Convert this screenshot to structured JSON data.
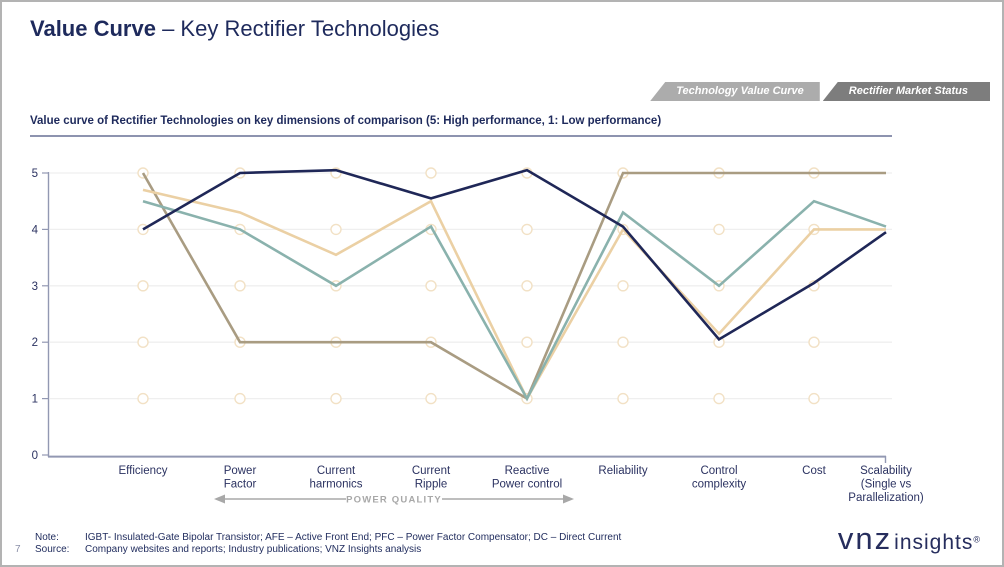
{
  "header": {
    "title_bold": "Value Curve",
    "title_rest": "– Key Rectifier Technologies"
  },
  "tabs": [
    {
      "label": "Technology Value Curve"
    },
    {
      "label": "Rectifier Market Status"
    }
  ],
  "subtitle": "Value curve of Rectifier Technologies on key dimensions of comparison (5: High performance, 1: Low performance)",
  "chart_data": {
    "type": "line",
    "title": "Value curve of Rectifier Technologies",
    "categories": [
      "Efficiency",
      "Power\nFactor",
      "Current\nharmonics",
      "Current\nRipple",
      "Reactive\nPower control",
      "Reliability",
      "Control\ncomplexity",
      "Cost",
      "Scalability\n(Single vs\nParallelization)"
    ],
    "series": [
      {
        "name": "brown",
        "color": "#a99c82",
        "values": [
          5,
          2,
          2,
          2,
          1,
          5,
          5,
          5,
          5
        ]
      },
      {
        "name": "tan",
        "color": "#ebd0a4",
        "values": [
          4.7,
          4.3,
          3.55,
          4.5,
          1,
          4,
          2.15,
          4,
          4
        ]
      },
      {
        "name": "teal",
        "color": "#8ab2ad",
        "values": [
          4.5,
          4,
          3,
          4.05,
          1,
          4.3,
          3,
          4.5,
          4.05
        ]
      },
      {
        "name": "navy",
        "color": "#1f2757",
        "values": [
          4,
          5,
          5.05,
          4.55,
          5.05,
          4.05,
          2.05,
          3.05,
          3.95
        ]
      }
    ],
    "ylim": [
      0,
      5
    ],
    "yticks": [
      0,
      1,
      2,
      3,
      4,
      5
    ],
    "axis_annotation": "POWER QUALITY",
    "legend": "none",
    "grid": "faint horizontal lines with hollow circle markers at integer values"
  },
  "footer": {
    "page_number": "7",
    "note_label": "Note:",
    "note_text": "IGBT- Insulated-Gate Bipolar Transistor; AFE – Active Front End; PFC – Power Factor Compensator; DC – Direct Current",
    "source_label": "Source:",
    "source_text": "Company websites and reports; Industry publications; VNZ Insights analysis"
  },
  "logo": {
    "brand": "vnz",
    "suffix": "insights",
    "mark": "®"
  },
  "colors": {
    "title_navy": "#1e2a5c",
    "axis_gray_navy": "#9298b2",
    "tab_light": "#acacac",
    "tab_dark": "#7d7d7d",
    "marker_stroke": "#f2e1c5",
    "annotation_gray": "#a8a8a8"
  }
}
